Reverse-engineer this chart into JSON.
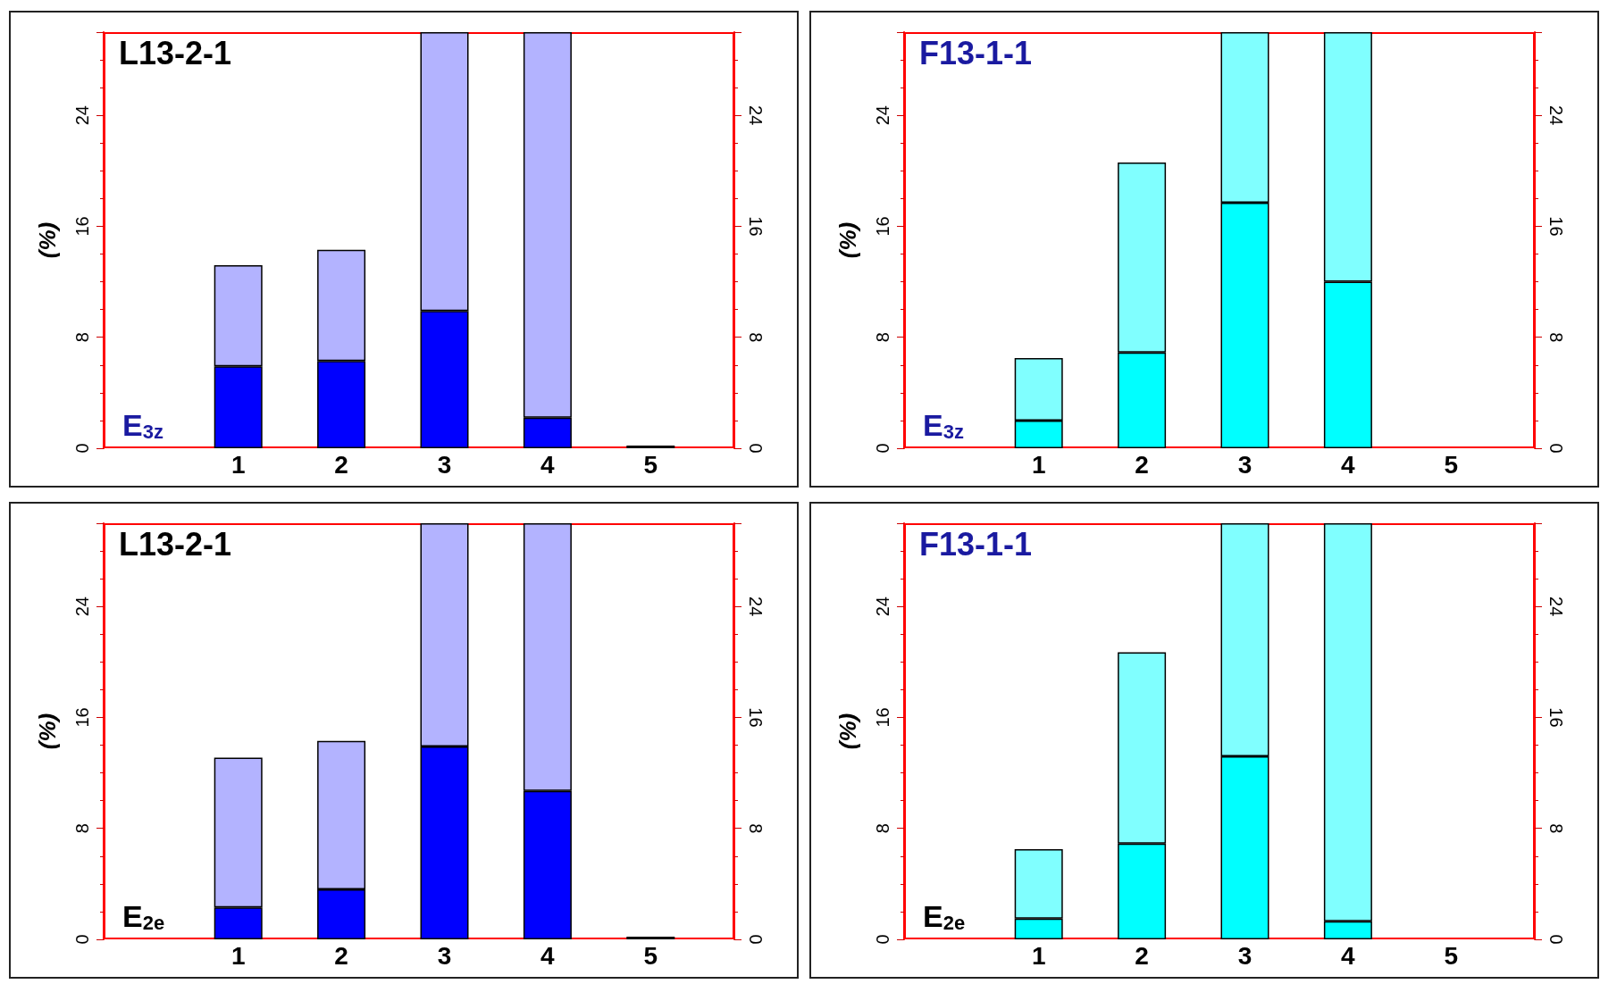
{
  "chart_data": [
    {
      "type": "bar",
      "title": "L13-2-1",
      "ylabel": "(%)",
      "annotations": [
        "E$_{3z}$"
      ],
      "categories": [
        "1",
        "2",
        "3",
        "4",
        "5"
      ],
      "stacked": true,
      "series": [
        {
          "color": "#0000ff",
          "values": [
            5.9,
            6.3,
            9.9,
            2.2,
            0
          ]
        },
        {
          "color": "#b3b3ff",
          "values": [
            7.3,
            8.0,
            20.1,
            27.8,
            0.2
          ]
        }
      ],
      "ylim": [
        0,
        30
      ],
      "yticks": [
        0,
        8,
        16,
        24
      ],
      "y2lim": [
        0,
        30
      ],
      "y2ticks": [
        0,
        8,
        16,
        24
      ]
    },
    {
      "type": "bar",
      "title": "F13-1-1",
      "ylabel": "(%)",
      "annotations": [
        "E$_{3z}$"
      ],
      "categories": [
        "1",
        "2",
        "3",
        "4",
        "5"
      ],
      "stacked": true,
      "series": [
        {
          "color": "#00ffff",
          "values": [
            2.0,
            6.9,
            17.7,
            12.0,
            0
          ]
        },
        {
          "color": "#80ffff",
          "values": [
            4.5,
            13.7,
            12.3,
            18.0,
            0
          ]
        }
      ],
      "ylim": [
        0,
        30
      ],
      "yticks": [
        0,
        8,
        16,
        24
      ],
      "y2lim": [
        0,
        30
      ],
      "y2ticks": [
        0,
        8,
        16,
        24
      ]
    },
    {
      "type": "bar",
      "title": "L13-2-1",
      "ylabel": "(%)",
      "annotations": [
        "E$_{2e}$"
      ],
      "categories": [
        "1",
        "2",
        "3",
        "4",
        "5"
      ],
      "stacked": true,
      "series": [
        {
          "color": "#0000ff",
          "values": [
            2.3,
            3.6,
            13.9,
            10.7,
            0
          ]
        },
        {
          "color": "#b3b3ff",
          "values": [
            10.8,
            10.7,
            16.1,
            19.3,
            0.2
          ]
        }
      ],
      "ylim": [
        0,
        30
      ],
      "yticks": [
        0,
        8,
        16,
        24
      ],
      "y2lim": [
        0,
        30
      ],
      "y2ticks": [
        0,
        8,
        16,
        24
      ]
    },
    {
      "type": "bar",
      "title": "F13-1-1",
      "ylabel": "(%)",
      "annotations": [
        "E$_{2e}$"
      ],
      "categories": [
        "1",
        "2",
        "3",
        "4",
        "5"
      ],
      "stacked": true,
      "series": [
        {
          "color": "#00ffff",
          "values": [
            1.5,
            6.9,
            13.2,
            1.3,
            0
          ]
        },
        {
          "color": "#80ffff",
          "values": [
            5.0,
            13.8,
            16.8,
            28.7,
            0
          ]
        }
      ],
      "ylim": [
        0,
        30
      ],
      "yticks": [
        0,
        8,
        16,
        24
      ],
      "y2lim": [
        0,
        30
      ],
      "y2ticks": [
        0,
        8,
        16,
        24
      ]
    }
  ]
}
